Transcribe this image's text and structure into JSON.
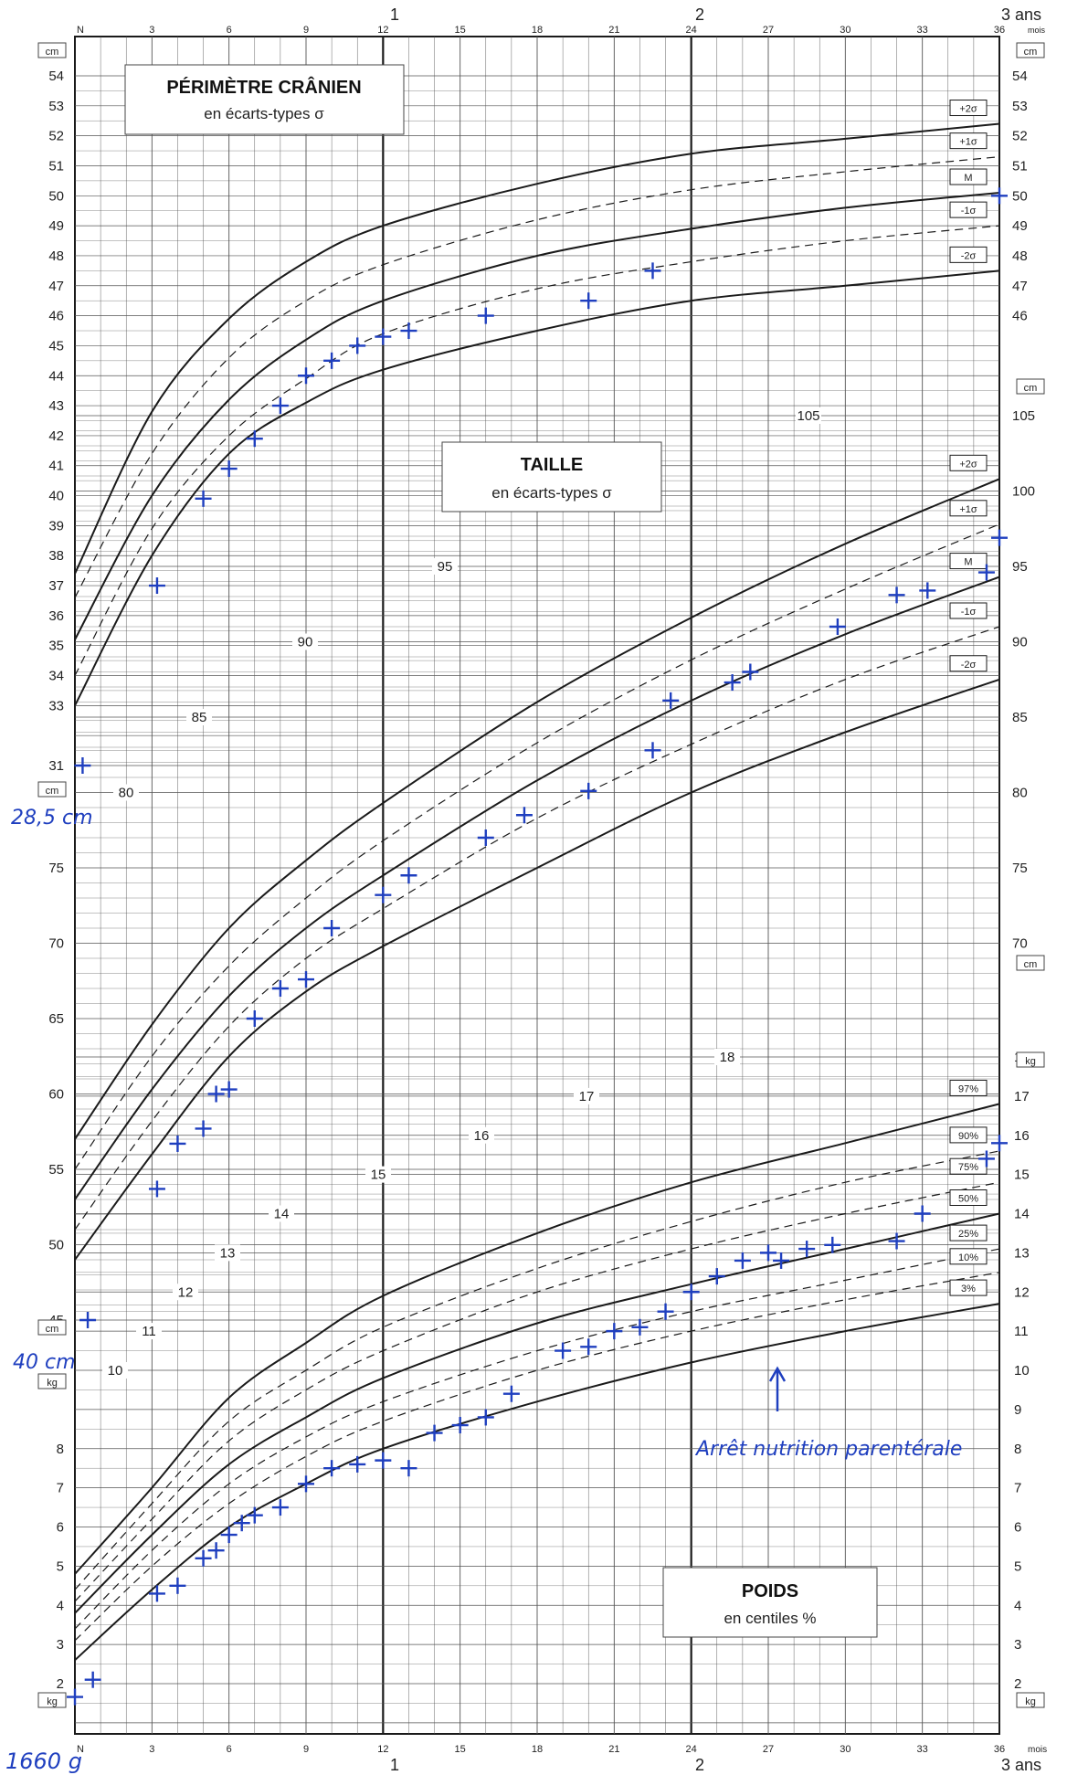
{
  "titles": {
    "head": "PÉRIMÈTRE CRÂNIEN",
    "head_sub": "en écarts-types σ",
    "height": "TAILLE",
    "height_sub": "en écarts-types σ",
    "weight": "POIDS",
    "weight_sub": "en centiles %"
  },
  "axis": {
    "top_years": [
      "1",
      "2",
      "3 ans"
    ],
    "bottom_years": [
      "1",
      "2",
      "3 ans"
    ],
    "months_unit": "mois",
    "months_first": "N",
    "month_ticks": [
      "3",
      "6",
      "9",
      "12",
      "15",
      "18",
      "21",
      "24",
      "27",
      "30",
      "33",
      "36"
    ],
    "unit_cm": "cm",
    "unit_kg": "kg",
    "head_ticks": [
      "31",
      "33",
      "34",
      "35",
      "36",
      "37",
      "38",
      "39",
      "40",
      "41",
      "42",
      "43",
      "44",
      "45",
      "46",
      "47",
      "48",
      "49",
      "50",
      "51",
      "52",
      "53",
      "54"
    ],
    "head_ticks_right": [
      "46",
      "47",
      "48",
      "49",
      "50",
      "51",
      "52",
      "53",
      "54"
    ],
    "height_ticks_left": [
      "45",
      "50",
      "55",
      "60",
      "65",
      "70",
      "75"
    ],
    "height_ticks_right": [
      "70",
      "75",
      "80",
      "85",
      "90",
      "95",
      "100",
      "105"
    ],
    "weight_ticks_right": [
      "2",
      "3",
      "4",
      "5",
      "6",
      "7",
      "8",
      "9",
      "10",
      "11",
      "12",
      "13",
      "14",
      "15",
      "16",
      "17",
      "18"
    ],
    "weight_ticks_left": [
      "2",
      "3",
      "4",
      "5",
      "6",
      "7",
      "8"
    ],
    "inner_labels": [
      "80",
      "85",
      "90",
      "95",
      "105",
      "10",
      "11",
      "12",
      "13",
      "14",
      "15",
      "16",
      "17",
      "18"
    ]
  },
  "annotations": {
    "length_at_birth": "28,5 cm",
    "head_at_birth": "40 cm",
    "weight_at_birth": "1660 g",
    "event": "Arrêt nutrition parentérale"
  },
  "colors": {
    "ink": "#1a1a1a",
    "grid": "#555555",
    "patient": "#1f3fbf"
  },
  "chart_data": [
    {
      "type": "line",
      "title": "PÉRIMÈTRE CRÂNIEN",
      "subtitle": "en écarts-types σ",
      "xlabel": "mois",
      "ylabel": "cm",
      "xlim": [
        0,
        36
      ],
      "ylim": [
        31,
        54
      ],
      "x": [
        0,
        3,
        6,
        9,
        12,
        18,
        24,
        30,
        36
      ],
      "series": [
        {
          "name": "+2σ",
          "values": [
            37.4,
            42.8,
            45.9,
            47.8,
            49.0,
            50.4,
            51.4,
            51.9,
            52.4
          ]
        },
        {
          "name": "+1σ",
          "values": [
            36.6,
            41.4,
            44.6,
            46.5,
            47.7,
            49.2,
            50.2,
            50.8,
            51.3
          ]
        },
        {
          "name": "M",
          "values": [
            35.2,
            40.0,
            43.2,
            45.2,
            46.5,
            48.0,
            48.9,
            49.6,
            50.1
          ]
        },
        {
          "name": "-1σ",
          "values": [
            34.0,
            38.9,
            42.0,
            43.9,
            45.4,
            46.9,
            47.8,
            48.5,
            49.0
          ]
        },
        {
          "name": "-2σ",
          "values": [
            33.0,
            38.0,
            41.4,
            43.1,
            44.2,
            45.5,
            46.5,
            47.0,
            47.5
          ]
        }
      ],
      "patient": {
        "x": [
          0.3,
          3.2,
          5.0,
          6.0,
          7.0,
          8.0,
          9.0,
          10.0,
          11.0,
          12.0,
          13.0,
          16.0,
          20.0,
          22.5,
          36.0
        ],
        "y": [
          31.0,
          37.0,
          39.9,
          40.9,
          41.9,
          43.0,
          44.0,
          44.5,
          45.0,
          45.3,
          45.5,
          46.0,
          46.5,
          47.5,
          50.0
        ]
      }
    },
    {
      "type": "line",
      "title": "TAILLE",
      "subtitle": "en écarts-types σ",
      "xlabel": "mois",
      "ylabel": "cm",
      "xlim": [
        0,
        36
      ],
      "ylim": [
        45,
        105
      ],
      "x": [
        0,
        3,
        6,
        9,
        12,
        18,
        24,
        30,
        36
      ],
      "series": [
        {
          "name": "+2σ",
          "values": [
            57.0,
            64.6,
            71.0,
            75.5,
            79.3,
            86.0,
            91.6,
            96.5,
            100.8
          ]
        },
        {
          "name": "+1σ",
          "values": [
            55.0,
            62.5,
            68.5,
            73.0,
            76.8,
            83.3,
            88.8,
            93.5,
            97.8
          ]
        },
        {
          "name": "M",
          "values": [
            53.0,
            60.3,
            66.5,
            71.0,
            74.5,
            80.8,
            86.1,
            90.5,
            94.3
          ]
        },
        {
          "name": "-1σ",
          "values": [
            51.0,
            58.2,
            64.5,
            69.0,
            72.3,
            78.3,
            83.2,
            87.5,
            91.0
          ]
        },
        {
          "name": "-2σ",
          "values": [
            49.0,
            56.0,
            62.5,
            66.8,
            69.8,
            75.0,
            80.0,
            84.0,
            87.5
          ]
        }
      ],
      "patient": {
        "x": [
          0.5,
          3.2,
          4.0,
          5.0,
          5.5,
          6.0,
          7.0,
          8.0,
          9.0,
          10.0,
          12.0,
          13.0,
          16.0,
          17.5,
          20.0,
          22.5,
          23.2,
          25.6,
          26.3,
          29.7,
          32.0,
          33.2,
          35.5,
          36.0
        ],
        "y": [
          45.0,
          53.7,
          56.7,
          57.7,
          60.0,
          60.3,
          65.0,
          67.0,
          67.6,
          71.0,
          73.2,
          74.5,
          77.0,
          78.5,
          80.1,
          82.8,
          86.1,
          87.3,
          88.0,
          91.0,
          93.1,
          93.4,
          94.6,
          96.9
        ]
      }
    },
    {
      "type": "line",
      "title": "POIDS",
      "subtitle": "en centiles %",
      "xlabel": "mois",
      "ylabel": "kg",
      "xlim": [
        0,
        36
      ],
      "ylim": [
        1,
        18
      ],
      "x": [
        0,
        3,
        6,
        9,
        12,
        18,
        24,
        30,
        36
      ],
      "series": [
        {
          "name": "97%",
          "values": [
            4.8,
            7.0,
            9.3,
            10.7,
            11.9,
            13.5,
            14.8,
            15.8,
            16.8
          ]
        },
        {
          "name": "90%",
          "values": [
            4.4,
            6.6,
            8.7,
            10.0,
            11.1,
            12.6,
            13.8,
            14.8,
            15.6
          ]
        },
        {
          "name": "75%",
          "values": [
            4.1,
            6.2,
            8.2,
            9.5,
            10.5,
            12.0,
            13.1,
            14.0,
            14.8
          ]
        },
        {
          "name": "50%",
          "values": [
            3.8,
            5.8,
            7.6,
            8.8,
            9.8,
            11.2,
            12.2,
            13.1,
            14.0
          ]
        },
        {
          "name": "25%",
          "values": [
            3.4,
            5.4,
            7.1,
            8.3,
            9.2,
            10.5,
            11.5,
            12.3,
            13.1
          ]
        },
        {
          "name": "10%",
          "values": [
            3.1,
            5.0,
            6.6,
            7.8,
            8.7,
            10.0,
            11.0,
            11.8,
            12.5
          ]
        },
        {
          "name": "3%",
          "values": [
            2.6,
            4.4,
            6.0,
            7.1,
            8.0,
            9.2,
            10.2,
            11.0,
            11.7
          ]
        }
      ],
      "patient": {
        "x": [
          0,
          0.7,
          3.2,
          4.0,
          5.0,
          5.5,
          6.0,
          6.5,
          7.0,
          8.0,
          9.0,
          10.0,
          11.0,
          12.0,
          13.0,
          14.0,
          15.0,
          16.0,
          17.0,
          19.0,
          20.0,
          21.0,
          22.0,
          23.0,
          24.0,
          25.0,
          26.0,
          27.0,
          27.5,
          28.5,
          29.5,
          32.0,
          33.0,
          35.5,
          36.0
        ],
        "y": [
          1.66,
          2.1,
          4.3,
          4.5,
          5.2,
          5.4,
          5.8,
          6.1,
          6.3,
          6.5,
          7.1,
          7.5,
          7.6,
          7.7,
          7.5,
          8.4,
          8.6,
          8.8,
          9.4,
          10.5,
          10.6,
          11.0,
          11.1,
          11.5,
          12.0,
          12.4,
          12.8,
          13.0,
          12.8,
          13.1,
          13.2,
          13.3,
          14.0,
          15.4,
          15.8
        ]
      }
    }
  ]
}
